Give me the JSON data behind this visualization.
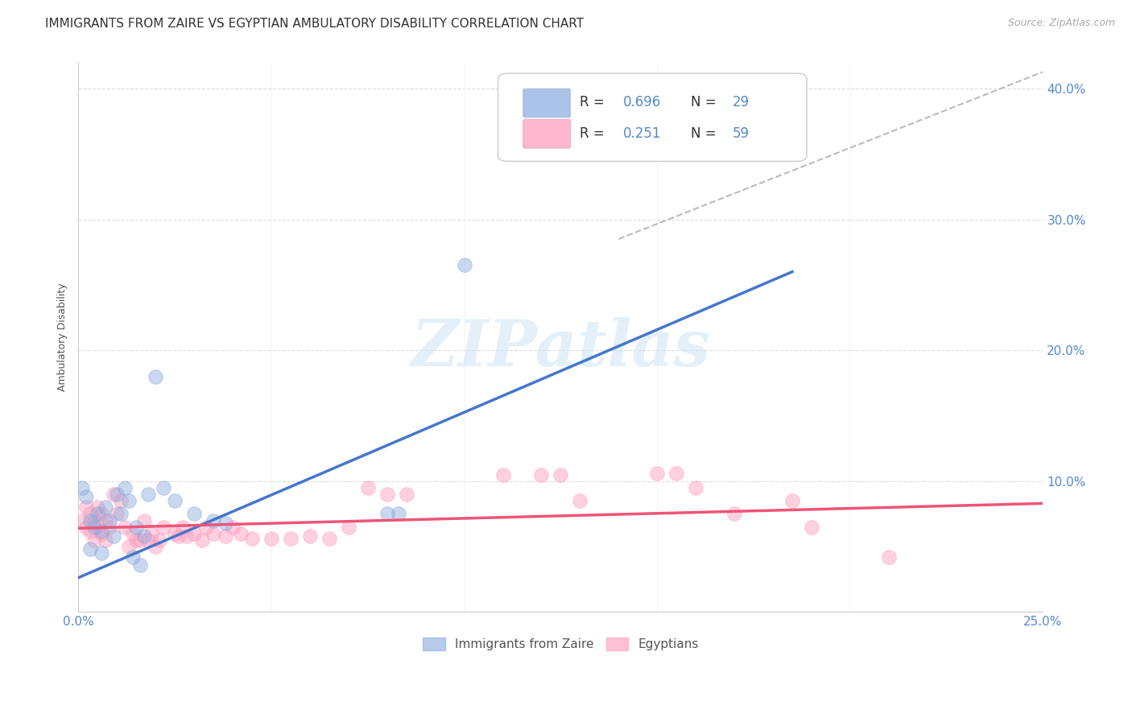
{
  "title": "IMMIGRANTS FROM ZAIRE VS EGYPTIAN AMBULATORY DISABILITY CORRELATION CHART",
  "source": "Source: ZipAtlas.com",
  "ylabel": "Ambulatory Disability",
  "xlim": [
    0.0,
    0.25
  ],
  "ylim": [
    0.0,
    0.42
  ],
  "xticks": [
    0.0,
    0.05,
    0.1,
    0.15,
    0.2,
    0.25
  ],
  "yticks": [
    0.0,
    0.1,
    0.2,
    0.3,
    0.4
  ],
  "xtick_labels": [
    "0.0%",
    "",
    "",
    "",
    "",
    "25.0%"
  ],
  "ytick_labels_right": [
    "",
    "10.0%",
    "20.0%",
    "30.0%",
    "40.0%"
  ],
  "legend_blue_label": "Immigrants from Zaire",
  "legend_pink_label": "Egyptians",
  "r_blue": "0.696",
  "n_blue": "29",
  "r_pink": "0.251",
  "n_pink": "59",
  "watermark": "ZIPatlas",
  "blue_scatter": [
    [
      0.002,
      0.088
    ],
    [
      0.003,
      0.07
    ],
    [
      0.004,
      0.065
    ],
    [
      0.005,
      0.075
    ],
    [
      0.006,
      0.062
    ],
    [
      0.007,
      0.08
    ],
    [
      0.008,
      0.07
    ],
    [
      0.009,
      0.058
    ],
    [
      0.01,
      0.09
    ],
    [
      0.011,
      0.075
    ],
    [
      0.012,
      0.095
    ],
    [
      0.013,
      0.085
    ],
    [
      0.015,
      0.065
    ],
    [
      0.017,
      0.058
    ],
    [
      0.018,
      0.09
    ],
    [
      0.02,
      0.18
    ],
    [
      0.022,
      0.095
    ],
    [
      0.025,
      0.085
    ],
    [
      0.03,
      0.075
    ],
    [
      0.035,
      0.07
    ],
    [
      0.038,
      0.068
    ],
    [
      0.08,
      0.075
    ],
    [
      0.083,
      0.075
    ],
    [
      0.1,
      0.265
    ],
    [
      0.001,
      0.095
    ],
    [
      0.003,
      0.048
    ],
    [
      0.006,
      0.045
    ],
    [
      0.014,
      0.042
    ],
    [
      0.016,
      0.036
    ]
  ],
  "pink_scatter": [
    [
      0.001,
      0.07
    ],
    [
      0.002,
      0.065
    ],
    [
      0.002,
      0.08
    ],
    [
      0.003,
      0.075
    ],
    [
      0.003,
      0.062
    ],
    [
      0.004,
      0.07
    ],
    [
      0.004,
      0.055
    ],
    [
      0.005,
      0.08
    ],
    [
      0.005,
      0.065
    ],
    [
      0.006,
      0.075
    ],
    [
      0.006,
      0.06
    ],
    [
      0.007,
      0.07
    ],
    [
      0.007,
      0.055
    ],
    [
      0.008,
      0.065
    ],
    [
      0.009,
      0.09
    ],
    [
      0.01,
      0.075
    ],
    [
      0.011,
      0.085
    ],
    [
      0.012,
      0.065
    ],
    [
      0.013,
      0.05
    ],
    [
      0.014,
      0.06
    ],
    [
      0.015,
      0.055
    ],
    [
      0.016,
      0.055
    ],
    [
      0.017,
      0.07
    ],
    [
      0.018,
      0.055
    ],
    [
      0.019,
      0.06
    ],
    [
      0.02,
      0.05
    ],
    [
      0.021,
      0.055
    ],
    [
      0.022,
      0.065
    ],
    [
      0.025,
      0.06
    ],
    [
      0.026,
      0.058
    ],
    [
      0.027,
      0.065
    ],
    [
      0.028,
      0.058
    ],
    [
      0.03,
      0.06
    ],
    [
      0.032,
      0.055
    ],
    [
      0.033,
      0.065
    ],
    [
      0.035,
      0.06
    ],
    [
      0.038,
      0.058
    ],
    [
      0.04,
      0.065
    ],
    [
      0.042,
      0.06
    ],
    [
      0.045,
      0.056
    ],
    [
      0.05,
      0.056
    ],
    [
      0.055,
      0.056
    ],
    [
      0.06,
      0.058
    ],
    [
      0.065,
      0.056
    ],
    [
      0.07,
      0.065
    ],
    [
      0.075,
      0.095
    ],
    [
      0.08,
      0.09
    ],
    [
      0.085,
      0.09
    ],
    [
      0.11,
      0.105
    ],
    [
      0.12,
      0.105
    ],
    [
      0.125,
      0.105
    ],
    [
      0.13,
      0.085
    ],
    [
      0.15,
      0.106
    ],
    [
      0.155,
      0.106
    ],
    [
      0.16,
      0.095
    ],
    [
      0.17,
      0.075
    ],
    [
      0.185,
      0.085
    ],
    [
      0.19,
      0.065
    ],
    [
      0.21,
      0.042
    ]
  ],
  "blue_line": [
    [
      -0.005,
      0.02
    ],
    [
      0.185,
      0.26
    ]
  ],
  "pink_line": [
    [
      0.0,
      0.064
    ],
    [
      0.25,
      0.083
    ]
  ],
  "dashed_line": [
    [
      0.14,
      0.285
    ],
    [
      0.252,
      0.415
    ]
  ],
  "blue_color": "#88aadd",
  "pink_color": "#ff99bb",
  "blue_line_color": "#4477cc",
  "pink_line_color": "#ee5577",
  "dashed_color": "#bbbbbb",
  "grid_color": "#dddddd",
  "title_color": "#333333",
  "axis_label_color": "#5588cc",
  "title_fontsize": 11,
  "ylabel_fontsize": 9,
  "tick_fontsize": 11,
  "source_fontsize": 9
}
